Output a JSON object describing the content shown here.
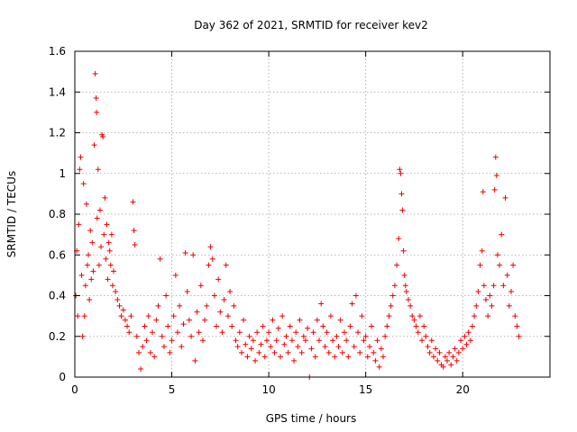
{
  "chart_data": {
    "type": "scatter",
    "title": "Day 362 of 2021, SRMTID for receiver kev2",
    "xlabel": "GPS time / hours",
    "ylabel": "SRMTID / TECUs",
    "xlim": [
      0,
      24.5
    ],
    "ylim": [
      0,
      1.6
    ],
    "xticks": [
      0,
      5,
      10,
      15,
      20
    ],
    "xtick_labels": [
      "0",
      "5",
      "10",
      "15",
      "20"
    ],
    "yticks": [
      0,
      0.2,
      0.4,
      0.6,
      0.8,
      1,
      1.2,
      1.4,
      1.6
    ],
    "ytick_labels": [
      "0",
      "0.2",
      "0.4",
      "0.6",
      "0.8",
      "1",
      "1.2",
      "1.4",
      "1.6"
    ],
    "grid": true,
    "marker": "plus",
    "color": "#ee0000",
    "series": [
      {
        "name": "SRMTID",
        "points": [
          [
            0.05,
            0.4
          ],
          [
            0.1,
            0.62
          ],
          [
            0.15,
            0.3
          ],
          [
            0.2,
            0.75
          ],
          [
            0.25,
            1.02
          ],
          [
            0.3,
            1.08
          ],
          [
            0.35,
            0.5
          ],
          [
            0.4,
            0.2
          ],
          [
            0.45,
            0.95
          ],
          [
            0.5,
            0.3
          ],
          [
            0.55,
            0.45
          ],
          [
            0.6,
            0.85
          ],
          [
            0.65,
            0.55
          ],
          [
            0.7,
            0.6
          ],
          [
            0.75,
            0.38
          ],
          [
            0.8,
            0.72
          ],
          [
            0.85,
            0.48
          ],
          [
            0.9,
            0.66
          ],
          [
            0.95,
            0.52
          ],
          [
            1.0,
            1.14
          ],
          [
            1.05,
            1.49
          ],
          [
            1.1,
            1.37
          ],
          [
            1.12,
            1.3
          ],
          [
            1.15,
            0.78
          ],
          [
            1.2,
            1.02
          ],
          [
            1.25,
            0.55
          ],
          [
            1.3,
            0.82
          ],
          [
            1.35,
            0.64
          ],
          [
            1.4,
            1.19
          ],
          [
            1.45,
            1.18
          ],
          [
            1.5,
            0.7
          ],
          [
            1.55,
            0.88
          ],
          [
            1.6,
            0.58
          ],
          [
            1.65,
            0.75
          ],
          [
            1.7,
            0.48
          ],
          [
            1.75,
            0.66
          ],
          [
            1.8,
            0.62
          ],
          [
            1.85,
            0.55
          ],
          [
            1.9,
            0.7
          ],
          [
            1.95,
            0.45
          ],
          [
            2.0,
            0.52
          ],
          [
            2.1,
            0.42
          ],
          [
            2.2,
            0.38
          ],
          [
            2.3,
            0.35
          ],
          [
            2.4,
            0.3
          ],
          [
            2.5,
            0.33
          ],
          [
            2.6,
            0.28
          ],
          [
            2.7,
            0.25
          ],
          [
            2.8,
            0.22
          ],
          [
            2.9,
            0.3
          ],
          [
            3.0,
            0.86
          ],
          [
            3.05,
            0.72
          ],
          [
            3.1,
            0.65
          ],
          [
            3.2,
            0.2
          ],
          [
            3.3,
            0.12
          ],
          [
            3.4,
            0.04
          ],
          [
            3.5,
            0.15
          ],
          [
            3.6,
            0.25
          ],
          [
            3.7,
            0.18
          ],
          [
            3.8,
            0.3
          ],
          [
            3.9,
            0.12
          ],
          [
            4.0,
            0.22
          ],
          [
            4.1,
            0.1
          ],
          [
            4.2,
            0.28
          ],
          [
            4.3,
            0.35
          ],
          [
            4.4,
            0.58
          ],
          [
            4.5,
            0.2
          ],
          [
            4.6,
            0.15
          ],
          [
            4.7,
            0.4
          ],
          [
            4.8,
            0.25
          ],
          [
            4.9,
            0.12
          ],
          [
            5.0,
            0.18
          ],
          [
            5.1,
            0.3
          ],
          [
            5.2,
            0.5
          ],
          [
            5.3,
            0.22
          ],
          [
            5.4,
            0.35
          ],
          [
            5.5,
            0.15
          ],
          [
            5.6,
            0.26
          ],
          [
            5.7,
            0.61
          ],
          [
            5.8,
            0.42
          ],
          [
            5.9,
            0.28
          ],
          [
            6.0,
            0.2
          ],
          [
            6.1,
            0.6
          ],
          [
            6.2,
            0.08
          ],
          [
            6.3,
            0.32
          ],
          [
            6.4,
            0.22
          ],
          [
            6.5,
            0.45
          ],
          [
            6.6,
            0.18
          ],
          [
            6.7,
            0.28
          ],
          [
            6.8,
            0.35
          ],
          [
            6.9,
            0.55
          ],
          [
            7.0,
            0.64
          ],
          [
            7.1,
            0.58
          ],
          [
            7.2,
            0.4
          ],
          [
            7.3,
            0.25
          ],
          [
            7.4,
            0.48
          ],
          [
            7.5,
            0.32
          ],
          [
            7.6,
            0.22
          ],
          [
            7.7,
            0.38
          ],
          [
            7.8,
            0.55
          ],
          [
            7.9,
            0.3
          ],
          [
            8.0,
            0.42
          ],
          [
            8.1,
            0.25
          ],
          [
            8.2,
            0.35
          ],
          [
            8.3,
            0.18
          ],
          [
            8.4,
            0.15
          ],
          [
            8.5,
            0.22
          ],
          [
            8.6,
            0.12
          ],
          [
            8.7,
            0.28
          ],
          [
            8.8,
            0.16
          ],
          [
            8.9,
            0.1
          ],
          [
            9.0,
            0.2
          ],
          [
            9.1,
            0.14
          ],
          [
            9.2,
            0.18
          ],
          [
            9.3,
            0.08
          ],
          [
            9.4,
            0.22
          ],
          [
            9.5,
            0.12
          ],
          [
            9.6,
            0.16
          ],
          [
            9.7,
            0.25
          ],
          [
            9.8,
            0.1
          ],
          [
            9.9,
            0.18
          ],
          [
            10.0,
            0.22
          ],
          [
            10.1,
            0.15
          ],
          [
            10.2,
            0.28
          ],
          [
            10.3,
            0.12
          ],
          [
            10.4,
            0.18
          ],
          [
            10.5,
            0.24
          ],
          [
            10.6,
            0.1
          ],
          [
            10.7,
            0.3
          ],
          [
            10.8,
            0.16
          ],
          [
            10.9,
            0.2
          ],
          [
            11.0,
            0.12
          ],
          [
            11.1,
            0.25
          ],
          [
            11.2,
            0.18
          ],
          [
            11.3,
            0.08
          ],
          [
            11.4,
            0.22
          ],
          [
            11.5,
            0.15
          ],
          [
            11.6,
            0.28
          ],
          [
            11.7,
            0.12
          ],
          [
            11.8,
            0.2
          ],
          [
            11.9,
            0.18
          ],
          [
            12.0,
            0.24
          ],
          [
            12.1,
            0.0
          ],
          [
            12.2,
            0.14
          ],
          [
            12.3,
            0.22
          ],
          [
            12.4,
            0.1
          ],
          [
            12.5,
            0.28
          ],
          [
            12.6,
            0.18
          ],
          [
            12.7,
            0.36
          ],
          [
            12.8,
            0.25
          ],
          [
            12.9,
            0.15
          ],
          [
            13.0,
            0.22
          ],
          [
            13.1,
            0.12
          ],
          [
            13.2,
            0.3
          ],
          [
            13.3,
            0.18
          ],
          [
            13.4,
            0.1
          ],
          [
            13.5,
            0.2
          ],
          [
            13.6,
            0.15
          ],
          [
            13.7,
            0.28
          ],
          [
            13.8,
            0.12
          ],
          [
            13.9,
            0.22
          ],
          [
            14.0,
            0.18
          ],
          [
            14.1,
            0.1
          ],
          [
            14.2,
            0.25
          ],
          [
            14.3,
            0.36
          ],
          [
            14.4,
            0.15
          ],
          [
            14.5,
            0.4
          ],
          [
            14.6,
            0.22
          ],
          [
            14.7,
            0.12
          ],
          [
            14.8,
            0.3
          ],
          [
            14.9,
            0.18
          ],
          [
            15.0,
            0.2
          ],
          [
            15.1,
            0.1
          ],
          [
            15.2,
            0.15
          ],
          [
            15.3,
            0.25
          ],
          [
            15.4,
            0.12
          ],
          [
            15.5,
            0.08
          ],
          [
            15.6,
            0.18
          ],
          [
            15.7,
            0.05
          ],
          [
            15.8,
            0.14
          ],
          [
            15.9,
            0.1
          ],
          [
            16.0,
            0.2
          ],
          [
            16.1,
            0.25
          ],
          [
            16.2,
            0.3
          ],
          [
            16.3,
            0.35
          ],
          [
            16.4,
            0.4
          ],
          [
            16.5,
            0.45
          ],
          [
            16.6,
            0.55
          ],
          [
            16.7,
            0.68
          ],
          [
            16.75,
            1.02
          ],
          [
            16.8,
            1.0
          ],
          [
            16.85,
            0.9
          ],
          [
            16.9,
            0.82
          ],
          [
            16.95,
            0.62
          ],
          [
            17.0,
            0.5
          ],
          [
            17.05,
            0.45
          ],
          [
            17.1,
            0.42
          ],
          [
            17.2,
            0.38
          ],
          [
            17.3,
            0.35
          ],
          [
            17.4,
            0.3
          ],
          [
            17.5,
            0.28
          ],
          [
            17.6,
            0.25
          ],
          [
            17.7,
            0.22
          ],
          [
            17.8,
            0.3
          ],
          [
            17.9,
            0.18
          ],
          [
            18.0,
            0.25
          ],
          [
            18.1,
            0.2
          ],
          [
            18.2,
            0.15
          ],
          [
            18.3,
            0.12
          ],
          [
            18.4,
            0.18
          ],
          [
            18.5,
            0.1
          ],
          [
            18.6,
            0.14
          ],
          [
            18.7,
            0.08
          ],
          [
            18.8,
            0.12
          ],
          [
            18.9,
            0.06
          ],
          [
            19.0,
            0.05
          ],
          [
            19.1,
            0.1
          ],
          [
            19.2,
            0.08
          ],
          [
            19.3,
            0.12
          ],
          [
            19.4,
            0.06
          ],
          [
            19.5,
            0.1
          ],
          [
            19.6,
            0.14
          ],
          [
            19.7,
            0.08
          ],
          [
            19.8,
            0.12
          ],
          [
            19.9,
            0.18
          ],
          [
            20.0,
            0.14
          ],
          [
            20.1,
            0.2
          ],
          [
            20.2,
            0.16
          ],
          [
            20.3,
            0.22
          ],
          [
            20.4,
            0.18
          ],
          [
            20.5,
            0.25
          ],
          [
            20.6,
            0.3
          ],
          [
            20.7,
            0.35
          ],
          [
            20.8,
            0.42
          ],
          [
            20.9,
            0.55
          ],
          [
            21.0,
            0.62
          ],
          [
            21.05,
            0.91
          ],
          [
            21.1,
            0.45
          ],
          [
            21.2,
            0.38
          ],
          [
            21.3,
            0.3
          ],
          [
            21.4,
            0.4
          ],
          [
            21.5,
            0.35
          ],
          [
            21.6,
            0.45
          ],
          [
            21.65,
            0.92
          ],
          [
            21.7,
            1.08
          ],
          [
            21.75,
            0.99
          ],
          [
            21.8,
            0.6
          ],
          [
            21.9,
            0.55
          ],
          [
            22.0,
            0.7
          ],
          [
            22.1,
            0.45
          ],
          [
            22.2,
            0.88
          ],
          [
            22.3,
            0.5
          ],
          [
            22.4,
            0.35
          ],
          [
            22.5,
            0.42
          ],
          [
            22.6,
            0.55
          ],
          [
            22.7,
            0.3
          ],
          [
            22.8,
            0.25
          ],
          [
            22.9,
            0.2
          ]
        ]
      }
    ]
  }
}
